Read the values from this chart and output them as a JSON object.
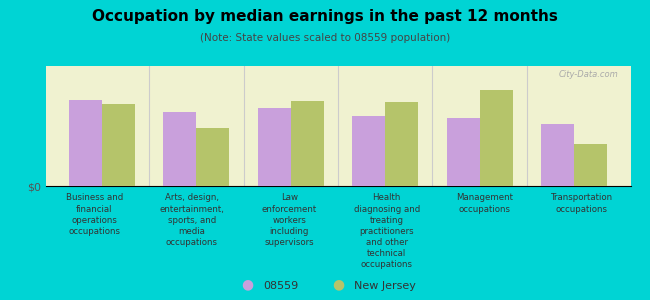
{
  "title": "Occupation by median earnings in the past 12 months",
  "subtitle": "(Note: State values scaled to 08559 population)",
  "background_color": "#00d4d4",
  "plot_bg_color": "#f0f2d0",
  "categories": [
    "Business and\nfinancial\noperations\noccupations",
    "Arts, design,\nentertainment,\nsports, and\nmedia\noccupations",
    "Law\nenforcement\nworkers\nincluding\nsupervisors",
    "Health\ndiagnosing and\ntreating\npractitioners\nand other\ntechnical\noccupations",
    "Management\noccupations",
    "Transportation\noccupations"
  ],
  "values_08559": [
    0.72,
    0.62,
    0.65,
    0.58,
    0.57,
    0.52
  ],
  "values_nj": [
    0.68,
    0.48,
    0.71,
    0.7,
    0.8,
    0.35
  ],
  "color_08559": "#c9a0dc",
  "color_nj": "#b5c46a",
  "ylabel": "$0",
  "legend_08559": "08559",
  "legend_nj": "New Jersey",
  "bar_width": 0.35,
  "watermark": "City-Data.com"
}
